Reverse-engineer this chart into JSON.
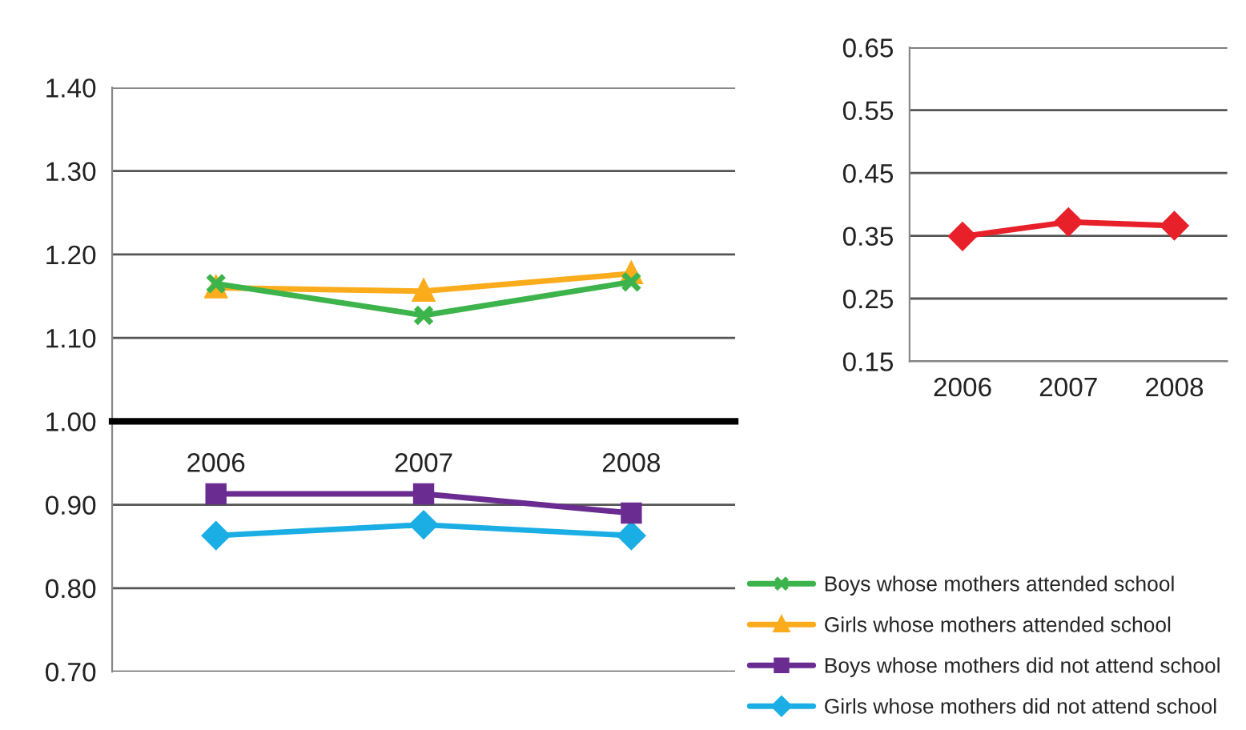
{
  "chart_data": [
    {
      "type": "line",
      "categories": [
        "2006",
        "2007",
        "2008"
      ],
      "ylim": [
        0.7,
        1.4
      ],
      "yticks": [
        {
          "value": 0.7,
          "label": "0.70"
        },
        {
          "value": 0.8,
          "label": "0.80"
        },
        {
          "value": 0.9,
          "label": "0.90"
        },
        {
          "value": 1.0,
          "label": "1.00"
        },
        {
          "value": 1.1,
          "label": "1.10"
        },
        {
          "value": 1.2,
          "label": "1.20"
        },
        {
          "value": 1.3,
          "label": "1.30"
        },
        {
          "value": 1.4,
          "label": "1.40"
        }
      ],
      "grid": "y",
      "legend": "right",
      "series": [
        {
          "name": "Boys whose mothers attended school",
          "color": "#3cb44b",
          "marker": "cross",
          "values": [
            1.165,
            1.127,
            1.167
          ]
        },
        {
          "name": "Girls whose mothers attended school",
          "color": "#fbac1c",
          "marker": "triangle",
          "values": [
            1.16,
            1.156,
            1.177
          ]
        },
        {
          "name": "Boys whose mothers did not attend school",
          "color": "#6a2c91",
          "marker": "square",
          "values": [
            0.913,
            0.913,
            0.89
          ]
        },
        {
          "name": "Girls whose mothers did not attend school",
          "color": "#1aaee5",
          "marker": "diamond",
          "values": [
            0.863,
            0.876,
            0.863
          ]
        }
      ]
    },
    {
      "type": "line",
      "categories": [
        "2006",
        "2007",
        "2008"
      ],
      "ylim": [
        0.15,
        0.65
      ],
      "yticks": [
        0.15,
        0.25,
        0.35,
        0.45,
        0.55,
        0.65
      ],
      "grid": "y",
      "series": [
        {
          "color": "#e8202a",
          "marker": "diamond",
          "values": [
            0.349,
            0.372,
            0.366
          ]
        }
      ]
    }
  ]
}
